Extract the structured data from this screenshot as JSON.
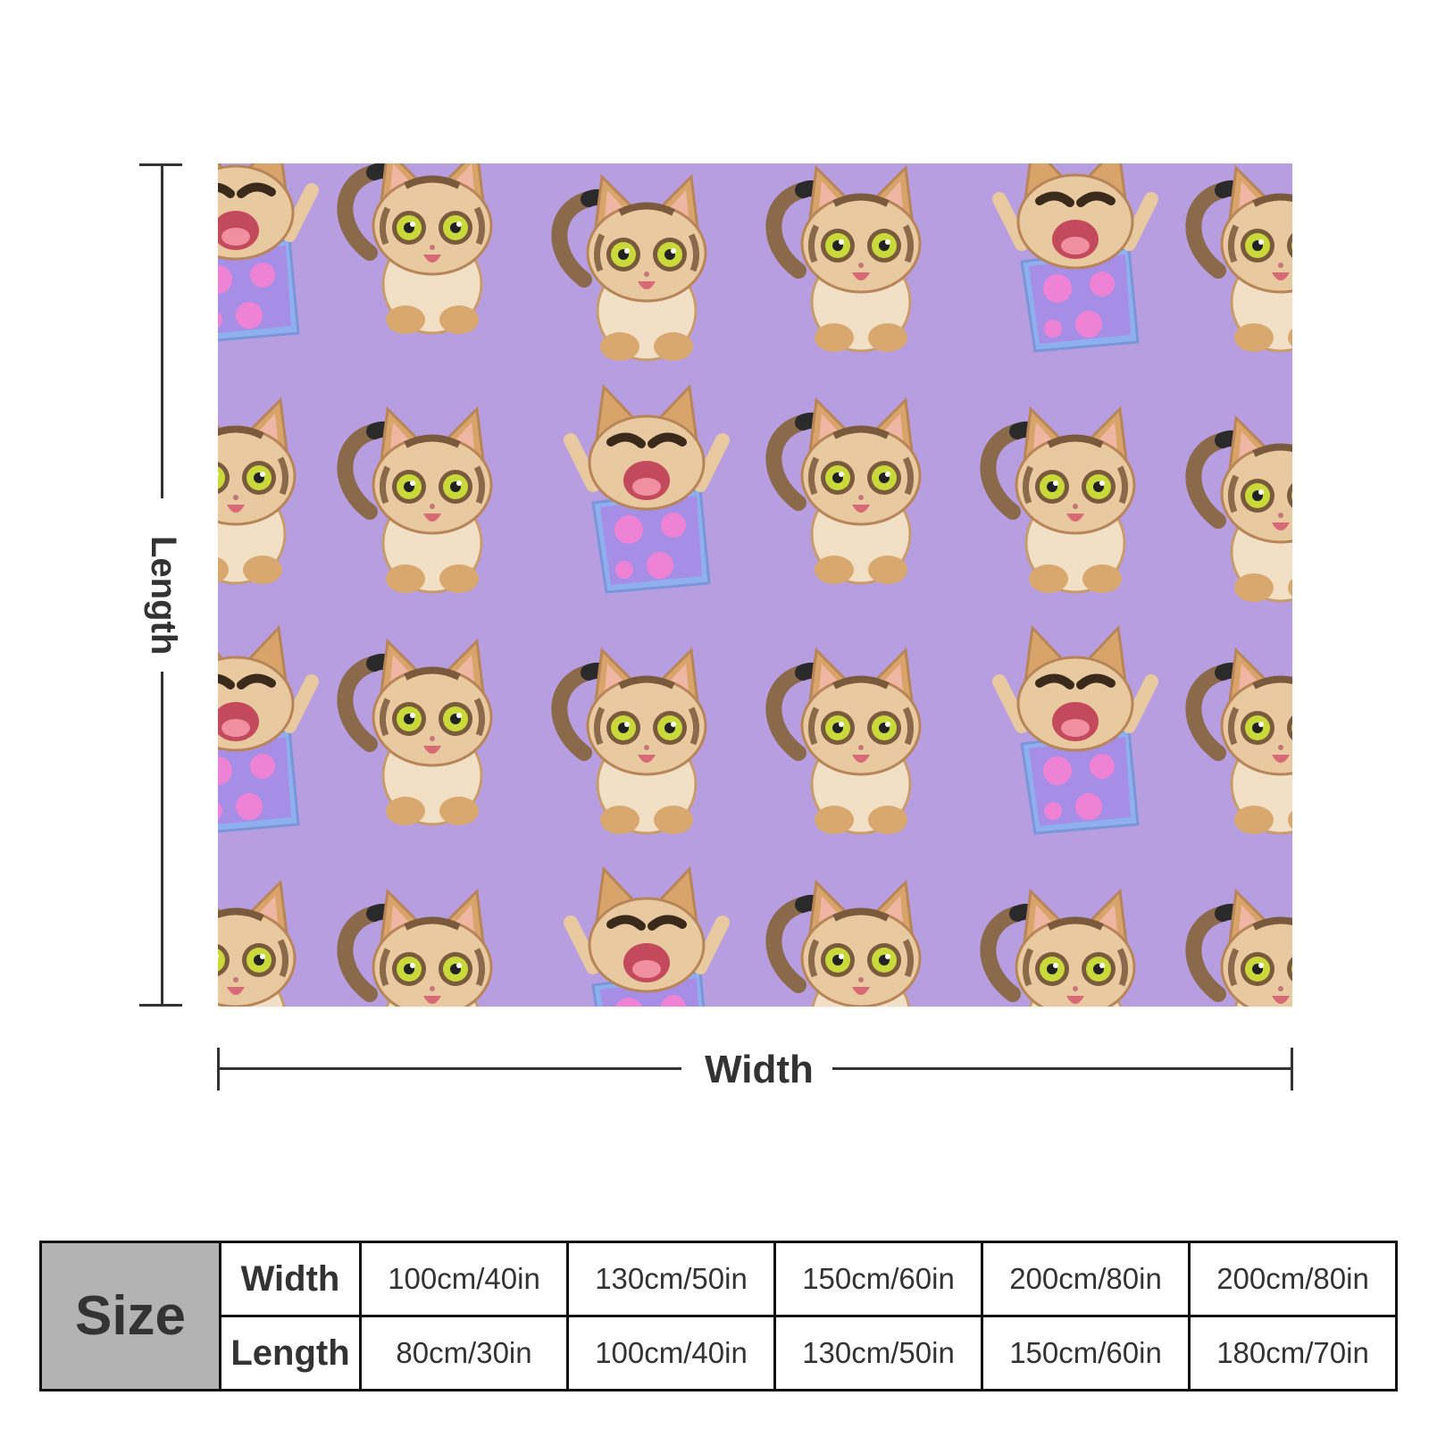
{
  "dimensions": {
    "length_label": "Length",
    "width_label": "Width"
  },
  "blanket": {
    "pattern": "cartoon tabby cats on purple",
    "background_color": "#b79ee0"
  },
  "size_table": {
    "title": "Size",
    "width_label": "Width",
    "length_label": "Length",
    "widths": [
      "100cm/40in",
      "130cm/50in",
      "150cm/60in",
      "200cm/80in",
      "200cm/80in"
    ],
    "lengths": [
      "80cm/30in",
      "100cm/40in",
      "130cm/50in",
      "150cm/60in",
      "180cm/70in"
    ]
  }
}
